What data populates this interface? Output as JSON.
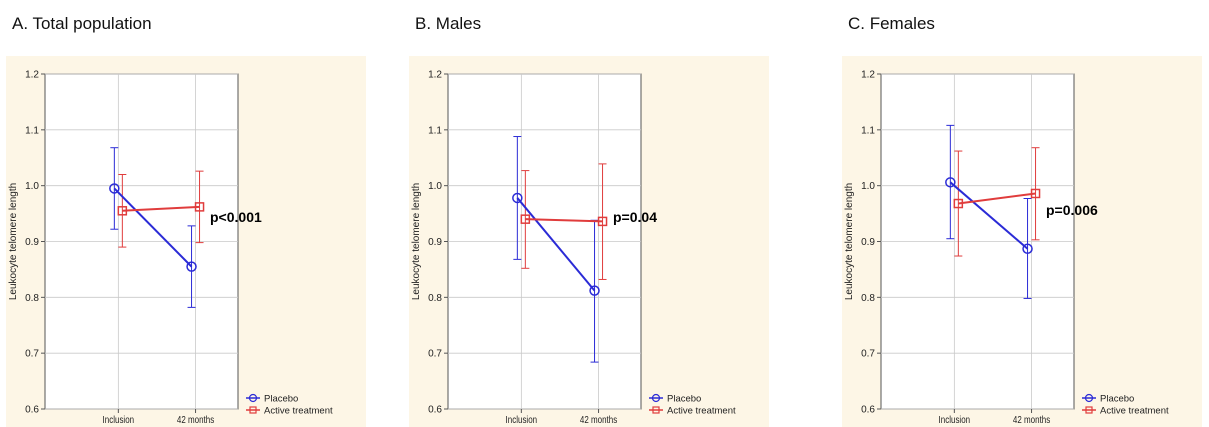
{
  "chart_data": [
    {
      "type": "line",
      "title": "A. Total population",
      "ylabel": "Leukocyte telomere length",
      "categories": [
        "Inclusion",
        "42 months"
      ],
      "ylim": [
        0.6,
        1.2
      ],
      "yticks": [
        "0.6",
        "0.7",
        "0.8",
        "0.9",
        "1.0",
        "1.1",
        "1.2"
      ],
      "annotation": "p<0.001",
      "legend_position": "bottom-right, outside",
      "series": [
        {
          "name": "Placebo",
          "color": "#2b2bd6",
          "marker": "circle",
          "values": [
            0.995,
            0.855
          ],
          "err_low": [
            0.922,
            0.782
          ],
          "err_high": [
            1.068,
            0.928
          ]
        },
        {
          "name": "Active treatment",
          "color": "#e03c3c",
          "marker": "square",
          "values": [
            0.955,
            0.962
          ],
          "err_low": [
            0.89,
            0.898
          ],
          "err_high": [
            1.02,
            1.026
          ]
        }
      ]
    },
    {
      "type": "line",
      "title": "B. Males",
      "ylabel": "Leukocyte telomere length",
      "categories": [
        "Inclusion",
        "42 months"
      ],
      "ylim": [
        0.6,
        1.2
      ],
      "yticks": [
        "0.6",
        "0.7",
        "0.8",
        "0.9",
        "1.0",
        "1.1",
        "1.2"
      ],
      "annotation": "p=0.04",
      "legend_position": "bottom-right, outside",
      "series": [
        {
          "name": "Placebo",
          "color": "#2b2bd6",
          "marker": "circle",
          "values": [
            0.978,
            0.812
          ],
          "err_low": [
            0.868,
            0.684
          ],
          "err_high": [
            1.088,
            0.938
          ]
        },
        {
          "name": "Active treatment",
          "color": "#e03c3c",
          "marker": "square",
          "values": [
            0.94,
            0.936
          ],
          "err_low": [
            0.852,
            0.832
          ],
          "err_high": [
            1.027,
            1.039
          ]
        }
      ]
    },
    {
      "type": "line",
      "title": "C. Females",
      "ylabel": "Leukocyte telomere length",
      "categories": [
        "Inclusion",
        "42 months"
      ],
      "ylim": [
        0.6,
        1.2
      ],
      "yticks": [
        "0.6",
        "0.7",
        "0.8",
        "0.9",
        "1.0",
        "1.1",
        "1.2"
      ],
      "annotation": "p=0.006",
      "legend_position": "bottom-right, outside",
      "series": [
        {
          "name": "Placebo",
          "color": "#2b2bd6",
          "marker": "circle",
          "values": [
            1.006,
            0.887
          ],
          "err_low": [
            0.905,
            0.798
          ],
          "err_high": [
            1.108,
            0.977
          ]
        },
        {
          "name": "Active treatment",
          "color": "#e03c3c",
          "marker": "square",
          "values": [
            0.968,
            0.986
          ],
          "err_low": [
            0.874,
            0.903
          ],
          "err_high": [
            1.062,
            1.068
          ]
        }
      ]
    }
  ],
  "colors": {
    "panel_background": "#fdf6e6",
    "grid": "#c9c9c9"
  }
}
